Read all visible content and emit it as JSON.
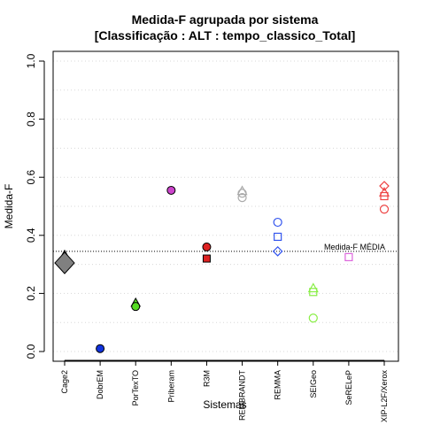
{
  "chart_data": {
    "type": "scatter",
    "title_line1": "Medida-F agrupada por sistema",
    "title_line2": "[Classificação : ALT : tempo_classico_Total]",
    "xlabel": "Sistemas",
    "ylabel": "Medida-F",
    "ylim": [
      0.0,
      1.0
    ],
    "yticks": [
      "0.0",
      "0.2",
      "0.4",
      "0.6",
      "0.8",
      "1.0"
    ],
    "grid": "horizontal dotted",
    "categories": [
      "Cage2",
      "DobrEM",
      "PorTexTO",
      "Priberam",
      "R3M",
      "REMBRANDT",
      "REMMA",
      "SEIGeo",
      "SeRELeP",
      "XIP-L2F/Xerox"
    ],
    "reference_line": {
      "label": "Medida-F MÉDIA",
      "value": 0.345
    },
    "series": [
      {
        "category": "Cage2",
        "color": "#808080",
        "points": [
          {
            "shape": "triangle",
            "y": 0.33
          },
          {
            "shape": "diamond-large",
            "y": 0.305
          }
        ]
      },
      {
        "category": "DobrEM",
        "color": "#1133dd",
        "points": [
          {
            "shape": "circle-filled",
            "y": 0.01
          }
        ]
      },
      {
        "category": "PorTexTO",
        "color": "#55dd22",
        "points": [
          {
            "shape": "triangle",
            "y": 0.165
          },
          {
            "shape": "circle-filled",
            "y": 0.155
          }
        ]
      },
      {
        "category": "Priberam",
        "color": "#cc44cc",
        "points": [
          {
            "shape": "circle-filled",
            "y": 0.555
          }
        ]
      },
      {
        "category": "R3M",
        "color": "#dd2222",
        "points": [
          {
            "shape": "circle-filled",
            "y": 0.36
          },
          {
            "shape": "square-filled",
            "y": 0.32
          }
        ]
      },
      {
        "category": "REMBRANDT",
        "color": "#aaaaaa",
        "points": [
          {
            "shape": "triangle-open",
            "y": 0.55
          },
          {
            "shape": "circle-open",
            "y": 0.545
          },
          {
            "shape": "circle-open",
            "y": 0.53
          }
        ]
      },
      {
        "category": "REMMA",
        "color": "#3355ee",
        "points": [
          {
            "shape": "circle-open",
            "y": 0.445
          },
          {
            "shape": "square-open",
            "y": 0.395
          },
          {
            "shape": "diamond-open",
            "y": 0.345
          }
        ]
      },
      {
        "category": "SEIGeo",
        "color": "#88ee44",
        "points": [
          {
            "shape": "triangle-open",
            "y": 0.215
          },
          {
            "shape": "square-open",
            "y": 0.205
          },
          {
            "shape": "circle-open",
            "y": 0.115
          }
        ]
      },
      {
        "category": "SeRELeP",
        "color": "#dd66dd",
        "points": [
          {
            "shape": "square-open",
            "y": 0.325
          }
        ]
      },
      {
        "category": "XIP-L2F/Xerox",
        "color": "#ee4444",
        "points": [
          {
            "shape": "diamond-open",
            "y": 0.57
          },
          {
            "shape": "triangle-open",
            "y": 0.545
          },
          {
            "shape": "square-open",
            "y": 0.535
          },
          {
            "shape": "circle-open",
            "y": 0.49
          }
        ]
      }
    ]
  }
}
